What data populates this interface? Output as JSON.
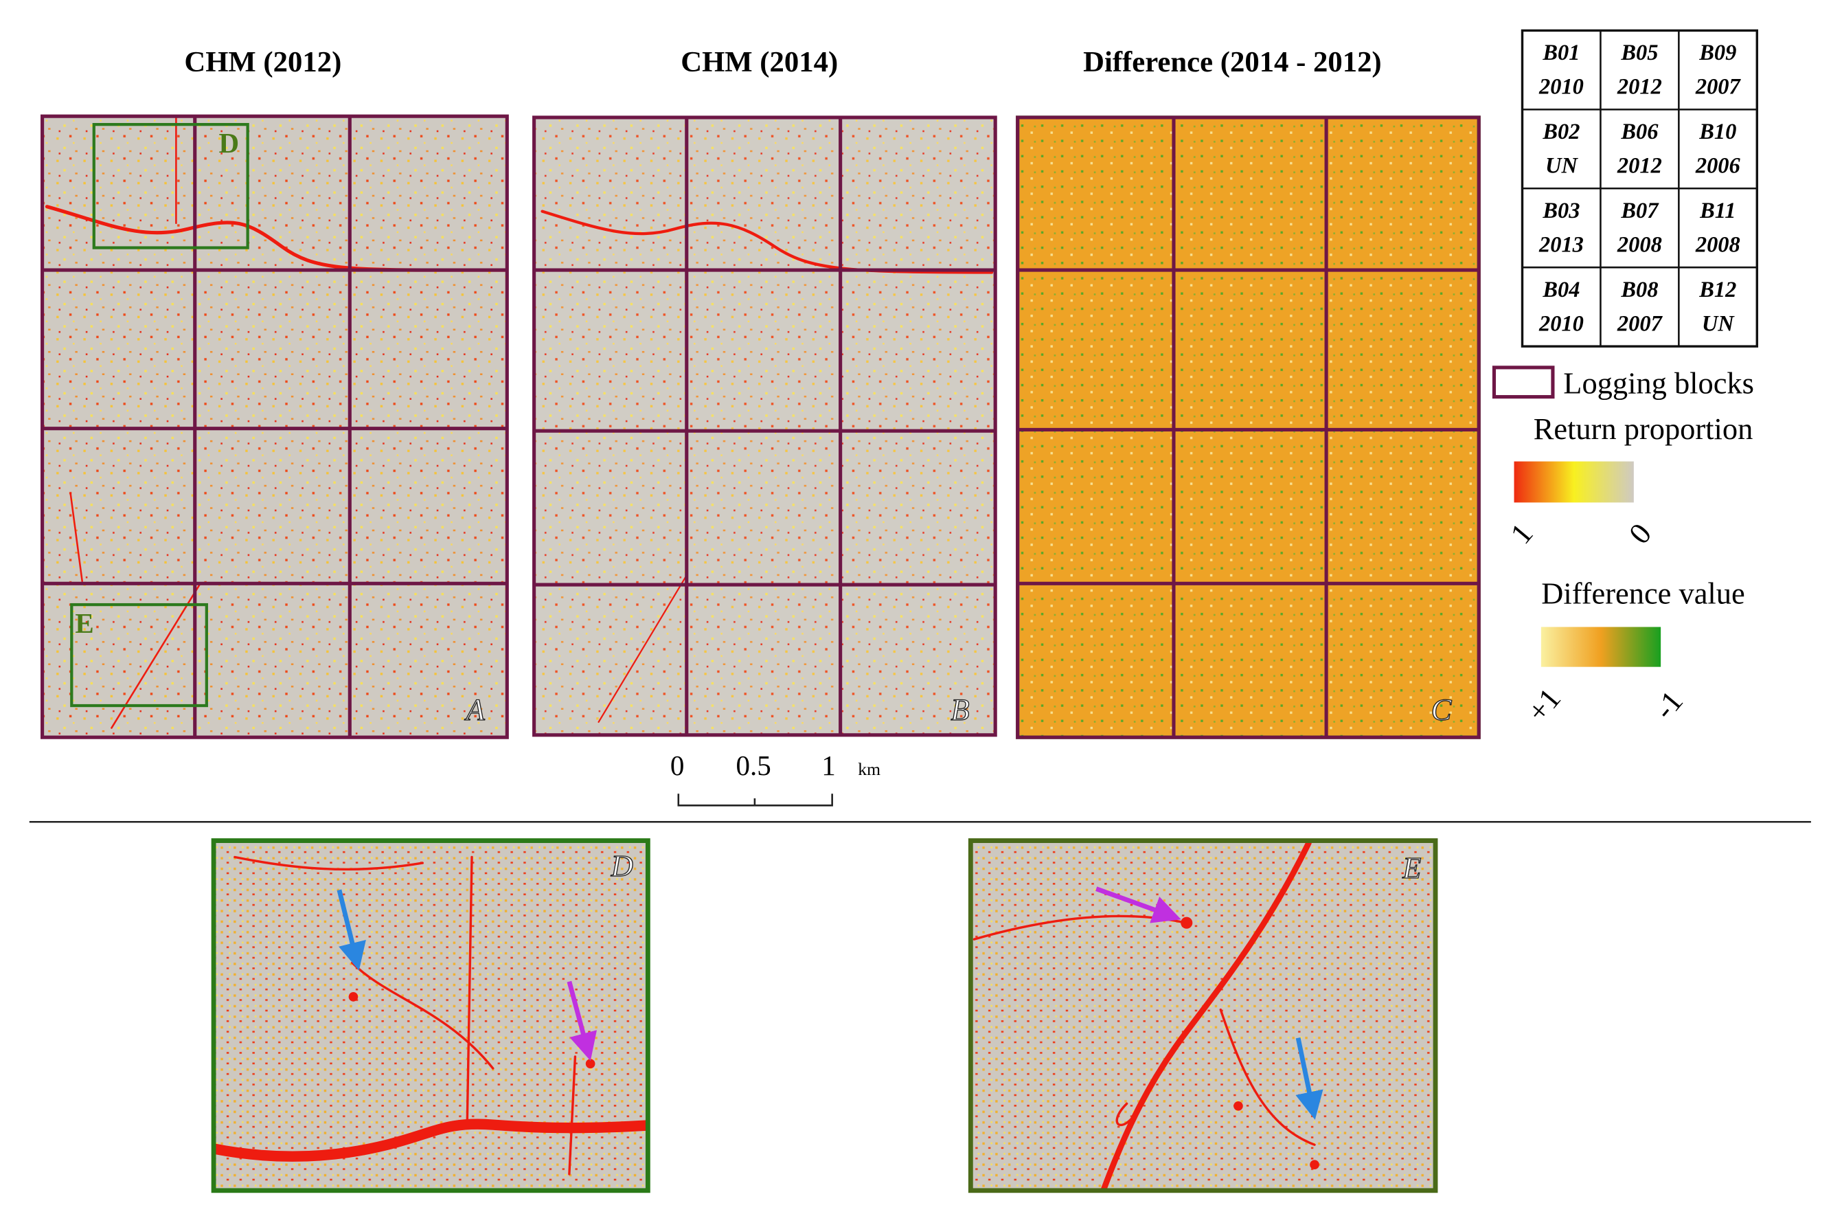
{
  "panels": [
    {
      "title": "CHM (2012)",
      "letter": "A"
    },
    {
      "title": "CHM (2014)",
      "letter": "B"
    },
    {
      "title": "Difference (2014 - 2012)",
      "letter": "C"
    }
  ],
  "block_table": [
    [
      {
        "id": "B01",
        "year": "2010"
      },
      {
        "id": "B05",
        "year": "2012"
      },
      {
        "id": "B09",
        "year": "2007"
      }
    ],
    [
      {
        "id": "B02",
        "year": "UN"
      },
      {
        "id": "B06",
        "year": "2012"
      },
      {
        "id": "B10",
        "year": "2006"
      }
    ],
    [
      {
        "id": "B03",
        "year": "2013"
      },
      {
        "id": "B07",
        "year": "2008"
      },
      {
        "id": "B11",
        "year": "2008"
      }
    ],
    [
      {
        "id": "B04",
        "year": "2010"
      },
      {
        "id": "B08",
        "year": "2007"
      },
      {
        "id": "B12",
        "year": "UN"
      }
    ]
  ],
  "legend": {
    "logging_blocks": "Logging blocks",
    "return_proportion": {
      "title": "Return proportion",
      "high": "1",
      "low": "0"
    },
    "difference": {
      "title": "Difference value",
      "high": "+1",
      "low": "-1"
    }
  },
  "scale_bar": {
    "labels": [
      "0",
      "0.5",
      "1"
    ],
    "unit": "km"
  },
  "insets": [
    {
      "letter": "D"
    },
    {
      "letter": "E"
    }
  ]
}
